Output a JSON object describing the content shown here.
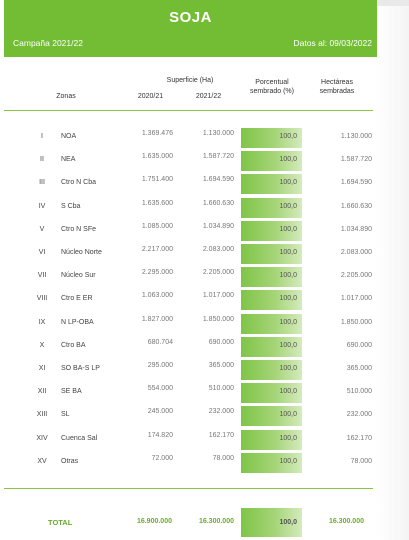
{
  "header": {
    "title": "SOJA",
    "campaign": "Campaña 2021/22",
    "date": "Datos al: 09/03/2022"
  },
  "columns": {
    "zonas": "Zonas",
    "superficie": "Superficie (Ha)",
    "year1": "2020/21",
    "year2": "2021/22",
    "porcentual": "Porcentual sembrado (%)",
    "hectareas": "Hectáreas sembradas"
  },
  "rows": [
    {
      "roman": "I",
      "zone": "NOA",
      "v2020": "1.369.476",
      "v2021": "1.130.000",
      "pct": "100,0",
      "sown": "1.130.000"
    },
    {
      "roman": "II",
      "zone": "NEA",
      "v2020": "1.635.000",
      "v2021": "1.587.720",
      "pct": "100,0",
      "sown": "1.587.720"
    },
    {
      "roman": "III",
      "zone": "Ctro N Cba",
      "v2020": "1.751.400",
      "v2021": "1.694.590",
      "pct": "100,0",
      "sown": "1.694.590"
    },
    {
      "roman": "IV",
      "zone": "S Cba",
      "v2020": "1.635.600",
      "v2021": "1.660.630",
      "pct": "100,0",
      "sown": "1.660.630"
    },
    {
      "roman": "V",
      "zone": "Ctro N SFe",
      "v2020": "1.085.000",
      "v2021": "1.034.890",
      "pct": "100,0",
      "sown": "1.034.890"
    },
    {
      "roman": "VI",
      "zone": "Núcleo Norte",
      "v2020": "2.217.000",
      "v2021": "2.083.000",
      "pct": "100,0",
      "sown": "2.083.000"
    },
    {
      "roman": "VII",
      "zone": "Núcleo Sur",
      "v2020": "2.295.000",
      "v2021": "2.205.000",
      "pct": "100,0",
      "sown": "2.205.000"
    },
    {
      "roman": "VIII",
      "zone": "Ctro E ER",
      "v2020": "1.063.000",
      "v2021": "1.017.000",
      "pct": "100,0",
      "sown": "1.017.000"
    },
    {
      "roman": "IX",
      "zone": "N LP-OBA",
      "v2020": "1.827.000",
      "v2021": "1.850.000",
      "pct": "100,0",
      "sown": "1.850.000"
    },
    {
      "roman": "X",
      "zone": "Ctro BA",
      "v2020": "680.704",
      "v2021": "690.000",
      "pct": "100,0",
      "sown": "690.000"
    },
    {
      "roman": "XI",
      "zone": "SO BA-S LP",
      "v2020": "295.000",
      "v2021": "365.000",
      "pct": "100,0",
      "sown": "365.000"
    },
    {
      "roman": "XII",
      "zone": "SE BA",
      "v2020": "554.000",
      "v2021": "510.000",
      "pct": "100,0",
      "sown": "510.000"
    },
    {
      "roman": "XIII",
      "zone": "SL",
      "v2020": "245.000",
      "v2021": "232.000",
      "pct": "100,0",
      "sown": "232.000"
    },
    {
      "roman": "XIV",
      "zone": "Cuenca Sal",
      "v2020": "174.820",
      "v2021": "162.170",
      "pct": "100,0",
      "sown": "162.170"
    },
    {
      "roman": "XV",
      "zone": "Otras",
      "v2020": "72.000",
      "v2021": "78.000",
      "pct": "100,0",
      "sown": "78.000"
    }
  ],
  "total": {
    "label": "TOTAL",
    "v2020": "16.900.000",
    "v2021": "16.300.000",
    "pct": "100,0",
    "sown": "16.300.000"
  },
  "colors": {
    "brand_green": "#73bd35",
    "total_text": "#6aab2e",
    "separator": "#8bc53f"
  }
}
